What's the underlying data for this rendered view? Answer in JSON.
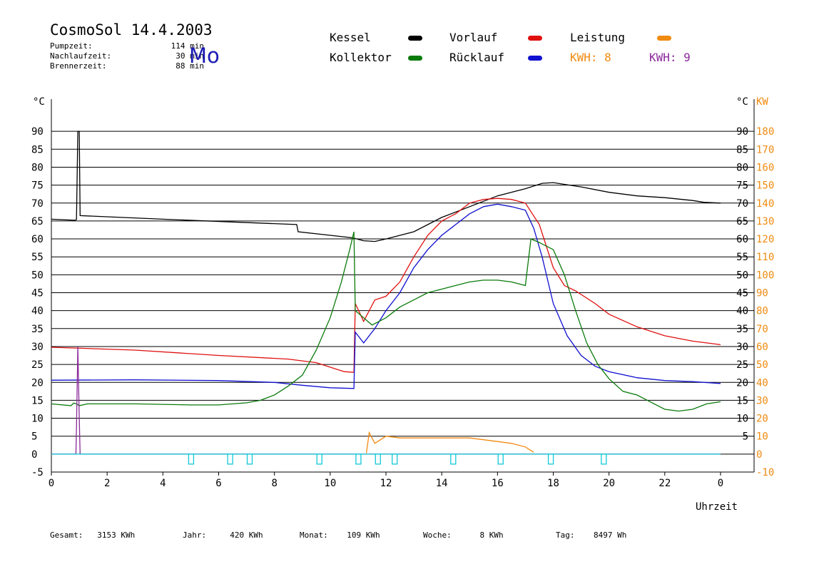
{
  "header": {
    "title": "CosmoSol 14.4.2003",
    "weekday": "Mo",
    "info": [
      {
        "label": "Pumpzeit:",
        "value": "114 min"
      },
      {
        "label": "Nachlaufzeit:",
        "value": "30 min"
      },
      {
        "label": "Brennerzeit:",
        "value": "88 min"
      }
    ]
  },
  "legend": {
    "kessel": {
      "label": "Kessel",
      "color": "#000000"
    },
    "kollektor": {
      "label": "Kollektor",
      "color": "#0a7a0a"
    },
    "vorlauf": {
      "label": "Vorlauf",
      "color": "#e01010"
    },
    "ruecklauf": {
      "label": "Rücklauf",
      "color": "#1010d0"
    },
    "leistung": {
      "label": "Leistung",
      "color": "#f08a10"
    },
    "kwh_orange": "KWH: 8",
    "kwh_purple": "KWH: 9",
    "kwh_purple_color": "#8a2a9a"
  },
  "footer": [
    {
      "label": "Gesamt:",
      "value": "3153 KWh"
    },
    {
      "label": "Jahr:",
      "value": "420 KWh"
    },
    {
      "label": "Monat:",
      "value": "109 KWh"
    },
    {
      "label": "Woche:",
      "value": "8 KWh"
    },
    {
      "label": "Tag:",
      "value": "8497 Wh"
    }
  ],
  "chart_data": {
    "type": "line",
    "xlabel": "Uhrzeit",
    "x_ticks": [
      "0",
      "2",
      "4",
      "6",
      "8",
      "10",
      "12",
      "14",
      "16",
      "18",
      "20",
      "22",
      "0"
    ],
    "xlim": [
      0,
      24
    ],
    "ylabel_left": "°C",
    "ylabel_right": "KW",
    "ylim_left": [
      -5,
      95
    ],
    "ylim_right": [
      -10,
      190
    ],
    "y_ticks_left": [
      90,
      85,
      80,
      75,
      70,
      65,
      60,
      55,
      50,
      45,
      40,
      35,
      30,
      25,
      20,
      15,
      10,
      5,
      0,
      -5
    ],
    "y_ticks_right_left": [
      90,
      85,
      80,
      75,
      70,
      65,
      60,
      55,
      50,
      45,
      40,
      35,
      30,
      25,
      20,
      15,
      10,
      5
    ],
    "y_ticks_right": [
      180,
      170,
      160,
      150,
      140,
      130,
      120,
      110,
      100,
      90,
      80,
      70,
      60,
      50,
      40,
      30,
      20,
      10,
      0,
      -10
    ],
    "grid": true,
    "pump_markers_h": [
      5.0,
      6.4,
      7.1,
      9.6,
      11.0,
      11.7,
      12.3,
      14.4,
      16.1,
      17.9,
      19.8
    ],
    "series": [
      {
        "name": "Kessel",
        "color": "#000000",
        "points": [
          [
            0,
            65.5
          ],
          [
            0.85,
            65.2
          ],
          [
            0.9,
            65.4
          ],
          [
            0.95,
            90
          ],
          [
            1.0,
            90
          ],
          [
            1.03,
            66.5
          ],
          [
            4,
            65.5
          ],
          [
            8.8,
            64
          ],
          [
            8.85,
            62
          ],
          [
            10,
            61
          ],
          [
            10.8,
            60.3
          ],
          [
            11.2,
            59.5
          ],
          [
            11.6,
            59.3
          ],
          [
            12,
            60
          ],
          [
            13,
            62
          ],
          [
            14,
            66
          ],
          [
            15,
            69
          ],
          [
            16,
            72
          ],
          [
            17,
            74
          ],
          [
            17.6,
            75.5
          ],
          [
            18,
            75.7
          ],
          [
            19,
            74.5
          ],
          [
            20,
            73
          ],
          [
            21,
            72
          ],
          [
            22,
            71.5
          ],
          [
            23,
            70.7
          ],
          [
            23.4,
            70.2
          ],
          [
            24,
            70
          ]
        ]
      },
      {
        "name": "Vorlauf",
        "color": "#e01010",
        "points": [
          [
            0,
            29.8
          ],
          [
            3,
            29
          ],
          [
            6,
            27.5
          ],
          [
            8.5,
            26.5
          ],
          [
            9.5,
            25.5
          ],
          [
            10.5,
            23
          ],
          [
            10.85,
            22.8
          ],
          [
            10.9,
            42
          ],
          [
            11.2,
            37
          ],
          [
            11.6,
            43
          ],
          [
            12,
            44
          ],
          [
            12.5,
            48
          ],
          [
            13,
            55
          ],
          [
            13.5,
            61
          ],
          [
            14,
            65
          ],
          [
            14.5,
            67
          ],
          [
            15,
            70
          ],
          [
            15.5,
            71
          ],
          [
            16,
            71.3
          ],
          [
            16.5,
            71
          ],
          [
            17,
            70
          ],
          [
            17.5,
            64
          ],
          [
            18,
            52
          ],
          [
            18.4,
            47
          ],
          [
            18.8,
            45.5
          ],
          [
            19.5,
            42
          ],
          [
            20,
            39
          ],
          [
            21,
            35.5
          ],
          [
            22,
            33
          ],
          [
            23,
            31.5
          ],
          [
            24,
            30.5
          ]
        ]
      },
      {
        "name": "Rücklauf",
        "color": "#1010d0",
        "points": [
          [
            0,
            20.6
          ],
          [
            3,
            20.7
          ],
          [
            6,
            20.5
          ],
          [
            8,
            20
          ],
          [
            9,
            19.2
          ],
          [
            10,
            18.5
          ],
          [
            10.85,
            18.3
          ],
          [
            10.9,
            34
          ],
          [
            11.2,
            31
          ],
          [
            11.6,
            35
          ],
          [
            12,
            40
          ],
          [
            12.5,
            45
          ],
          [
            13,
            52
          ],
          [
            13.5,
            57
          ],
          [
            14,
            61
          ],
          [
            14.5,
            64
          ],
          [
            15,
            67
          ],
          [
            15.5,
            69
          ],
          [
            16,
            69.7
          ],
          [
            16.5,
            69
          ],
          [
            17,
            68
          ],
          [
            17.3,
            63
          ],
          [
            17.6,
            55
          ],
          [
            18,
            42
          ],
          [
            18.5,
            33
          ],
          [
            19,
            27.5
          ],
          [
            19.5,
            24.5
          ],
          [
            20,
            23
          ],
          [
            21,
            21.3
          ],
          [
            22,
            20.5
          ],
          [
            23,
            20.2
          ],
          [
            24,
            19.7
          ]
        ]
      },
      {
        "name": "Kollektor",
        "color": "#0a7a0a",
        "points": [
          [
            0,
            14
          ],
          [
            0.7,
            13.5
          ],
          [
            0.8,
            14.2
          ],
          [
            0.9,
            14
          ],
          [
            1.0,
            13.5
          ],
          [
            1.3,
            14
          ],
          [
            3,
            14
          ],
          [
            5,
            13.7
          ],
          [
            6,
            13.7
          ],
          [
            7,
            14.3
          ],
          [
            7.5,
            15
          ],
          [
            8,
            16.5
          ],
          [
            8.5,
            19
          ],
          [
            9,
            22
          ],
          [
            9.5,
            29
          ],
          [
            10,
            38
          ],
          [
            10.4,
            48
          ],
          [
            10.7,
            57
          ],
          [
            10.85,
            62
          ],
          [
            10.9,
            40
          ],
          [
            11.5,
            36
          ],
          [
            12,
            38
          ],
          [
            12.5,
            41
          ],
          [
            13,
            43
          ],
          [
            13.5,
            45
          ],
          [
            14,
            46
          ],
          [
            14.5,
            47
          ],
          [
            15,
            48
          ],
          [
            15.5,
            48.5
          ],
          [
            16,
            48.5
          ],
          [
            16.5,
            48
          ],
          [
            17,
            47
          ],
          [
            17.2,
            60
          ],
          [
            17.5,
            59
          ],
          [
            18,
            57
          ],
          [
            18.4,
            50
          ],
          [
            18.8,
            40
          ],
          [
            19.2,
            31
          ],
          [
            19.6,
            25
          ],
          [
            20,
            21
          ],
          [
            20.5,
            17.5
          ],
          [
            21,
            16.5
          ],
          [
            21.5,
            14.5
          ],
          [
            22,
            12.5
          ],
          [
            22.5,
            12
          ],
          [
            23,
            12.5
          ],
          [
            23.5,
            14
          ],
          [
            24,
            14.6
          ]
        ]
      },
      {
        "name": "Leistung",
        "color": "#f08a10",
        "points": [
          [
            11.3,
            0.3
          ],
          [
            11.4,
            6
          ],
          [
            11.6,
            3
          ],
          [
            12,
            5
          ],
          [
            12.5,
            4.5
          ],
          [
            13,
            4.5
          ],
          [
            13.5,
            4.5
          ],
          [
            14,
            4.5
          ],
          [
            14.5,
            4.5
          ],
          [
            15,
            4.5
          ],
          [
            15.5,
            4
          ],
          [
            16,
            3.5
          ],
          [
            16.5,
            3
          ],
          [
            17,
            2
          ],
          [
            17.3,
            0.5
          ]
        ]
      },
      {
        "name": "Leistung KWH 9",
        "color": "#8a2a9a",
        "points": [
          [
            0,
            0
          ],
          [
            0.88,
            0
          ],
          [
            0.9,
            7.5
          ],
          [
            0.95,
            30
          ],
          [
            1.0,
            10
          ],
          [
            1.03,
            0
          ],
          [
            24,
            0
          ]
        ]
      },
      {
        "name": "Pumpe",
        "color": "#10c8d8",
        "points": [
          [
            0,
            0
          ],
          [
            24,
            0
          ]
        ]
      }
    ]
  }
}
